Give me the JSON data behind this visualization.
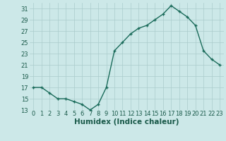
{
  "x": [
    0,
    1,
    2,
    3,
    4,
    5,
    6,
    7,
    8,
    9,
    10,
    11,
    12,
    13,
    14,
    15,
    16,
    17,
    18,
    19,
    20,
    21,
    22,
    23
  ],
  "y": [
    17,
    17,
    16,
    15,
    15,
    14.5,
    14,
    13,
    14,
    17,
    23.5,
    25,
    26.5,
    27.5,
    28,
    29,
    30,
    31.5,
    30.5,
    29.5,
    28,
    23.5,
    22,
    21
  ],
  "line_color": "#1a6b5a",
  "marker": "+",
  "marker_color": "#1a6b5a",
  "bg_color": "#cce8e8",
  "grid_color": "#aacccc",
  "xlabel": "Humidex (Indice chaleur)",
  "xlabel_color": "#1a5a4a",
  "tick_color": "#1a5a4a",
  "ylim": [
    13,
    32
  ],
  "xlim": [
    -0.5,
    23.5
  ],
  "yticks": [
    13,
    15,
    17,
    19,
    21,
    23,
    25,
    27,
    29,
    31
  ],
  "xticks": [
    0,
    1,
    2,
    3,
    4,
    5,
    6,
    7,
    8,
    9,
    10,
    11,
    12,
    13,
    14,
    15,
    16,
    17,
    18,
    19,
    20,
    21,
    22,
    23
  ],
  "fontsize_ticks": 6,
  "fontsize_xlabel": 7.5,
  "linewidth": 1.0,
  "markersize": 3.5
}
